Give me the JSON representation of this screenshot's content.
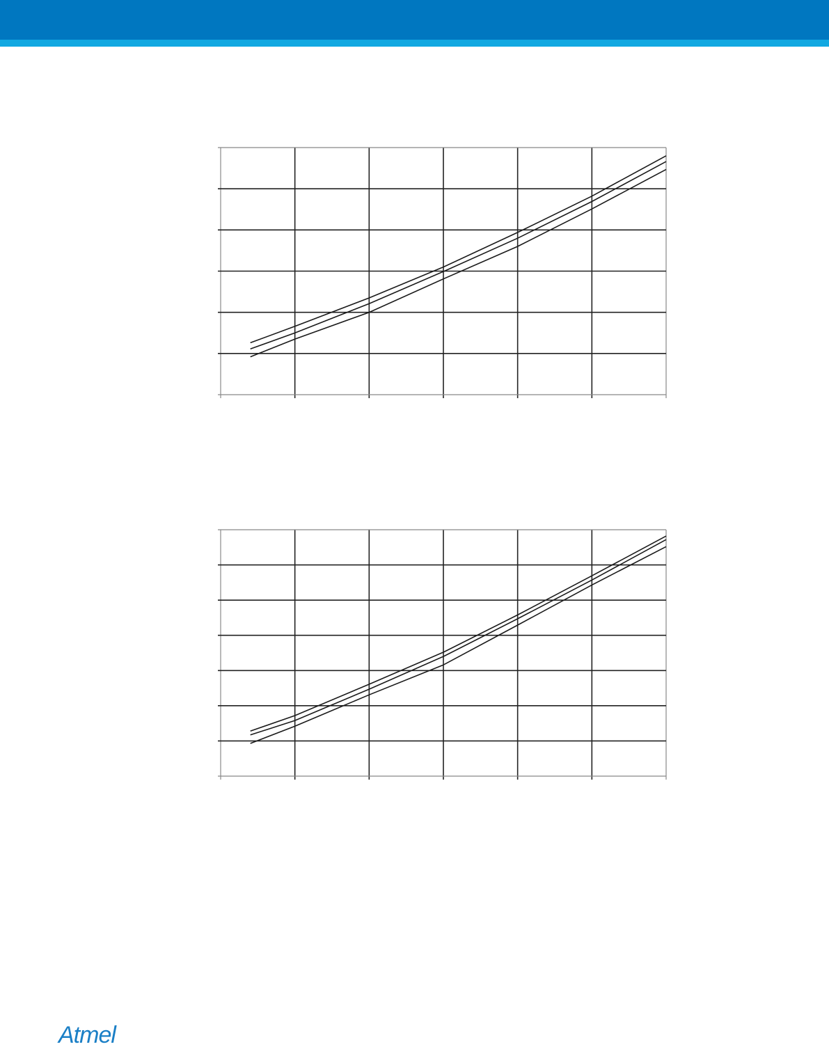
{
  "header": {
    "color_primary": "#0077c0",
    "color_accent": "#12a8e1"
  },
  "logo": {
    "text": "Atmel",
    "color": "#1a7fc6"
  },
  "chart_data": [
    {
      "type": "line",
      "title": "",
      "xlabel": "",
      "ylabel": "",
      "xlim": [
        0,
        6
      ],
      "ylim": [
        0,
        6
      ],
      "grid": true,
      "x": [
        0.4,
        1,
        2,
        3,
        4,
        5,
        6
      ],
      "series": [
        {
          "values": [
            1.26,
            1.66,
            2.35,
            3.1,
            3.94,
            4.82,
            5.8
          ]
        },
        {
          "values": [
            1.11,
            1.5,
            2.21,
            2.99,
            3.8,
            4.69,
            5.66
          ]
        },
        {
          "values": [
            0.92,
            1.35,
            2.0,
            2.81,
            3.6,
            4.51,
            5.47
          ]
        }
      ]
    },
    {
      "type": "line",
      "title": "",
      "xlabel": "",
      "ylabel": "",
      "xlim": [
        0,
        6
      ],
      "ylim": [
        0,
        7
      ],
      "grid": true,
      "x": [
        0.4,
        1,
        2,
        3,
        4,
        5,
        6
      ],
      "series": [
        {
          "values": [
            1.28,
            1.72,
            2.61,
            3.52,
            4.58,
            5.69,
            6.82
          ]
        },
        {
          "values": [
            1.17,
            1.58,
            2.47,
            3.4,
            4.47,
            5.57,
            6.72
          ]
        },
        {
          "values": [
            0.93,
            1.42,
            2.31,
            3.16,
            4.29,
            5.43,
            6.52
          ]
        }
      ]
    }
  ]
}
